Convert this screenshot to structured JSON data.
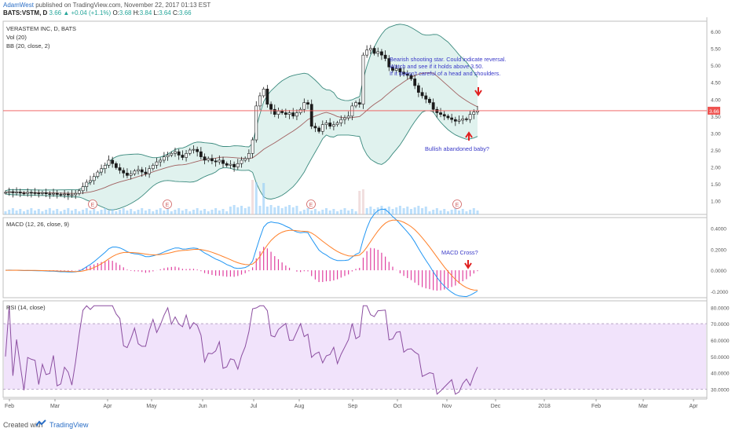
{
  "header": {
    "author": "AdamWest",
    "published": "published on TradingView.com, November 22, 2017 01:13 EST",
    "symbol": "BATS:VSTM, D",
    "last": "3.66",
    "change": "+0.04 (+1.1%)",
    "o_label": "O:",
    "o_value": "3.68",
    "h_label": "H:",
    "h_value": "3.84",
    "l_label": "L:",
    "l_value": "3.64",
    "c_label": "C:",
    "c_value": "3.66"
  },
  "footer": {
    "created": "Created with",
    "brand": "TradingView"
  },
  "colors": {
    "up": "#26a69a",
    "down": "#ef5350",
    "candle_body": "#1b1b1b",
    "bb_fill": "#e0f2ee",
    "bb_line": "#3b8a7e",
    "bb_mid": "#a06060",
    "vol": "#90caf9",
    "macd": "#2196f3",
    "signal": "#ff7f27",
    "hist": "#e040a0",
    "rsi": "#8b4ea0",
    "rsi_band": "#f1e3fb",
    "annotation": "#3a3ac8",
    "arrow": "#e02020",
    "price_line": "#ef5350"
  },
  "chart_data": [
    {
      "type": "candlestick",
      "title": "VERASTEM INC, D, BATS",
      "indicators": [
        "Vol (20)",
        "BB (20, close, 2)"
      ],
      "ylim": [
        0.6,
        6.3
      ],
      "yticks": [
        "6.00",
        "5.50",
        "5.00",
        "4.50",
        "4.00",
        "3.50",
        "3.00",
        "2.50",
        "2.00",
        "1.50",
        "1.00"
      ],
      "last_price_label": "3.66",
      "months": [
        "Feb",
        "Mar",
        "Apr",
        "May",
        "Jun",
        "Jul",
        "Aug",
        "Sep",
        "Oct",
        "Nov",
        "Dec",
        "2018",
        "Feb",
        "Mar",
        "Apr"
      ],
      "close_series": [
        1.25,
        1.27,
        1.24,
        1.26,
        1.23,
        1.22,
        1.25,
        1.24,
        1.23,
        1.22,
        1.24,
        1.21,
        1.2,
        1.22,
        1.19,
        1.18,
        1.2,
        1.17,
        1.18,
        1.22,
        1.3,
        1.42,
        1.55,
        1.6,
        1.72,
        1.85,
        1.95,
        2.05,
        2.2,
        2.1,
        1.98,
        1.9,
        1.82,
        1.75,
        1.8,
        1.88,
        1.92,
        1.85,
        1.8,
        1.95,
        2.05,
        2.15,
        2.2,
        2.3,
        2.35,
        2.4,
        2.45,
        2.35,
        2.28,
        2.4,
        2.5,
        2.52,
        2.45,
        2.3,
        2.2,
        2.25,
        2.18,
        2.15,
        2.2,
        2.1,
        2.05,
        2.08,
        2.0,
        2.1,
        2.2,
        2.25,
        2.4,
        2.8,
        3.8,
        4.1,
        4.3,
        3.85,
        3.7,
        3.55,
        3.65,
        3.6,
        3.55,
        3.6,
        3.5,
        3.6,
        3.7,
        3.9,
        3.85,
        3.2,
        3.15,
        3.05,
        3.25,
        3.3,
        3.2,
        3.25,
        3.3,
        3.4,
        3.45,
        3.5,
        3.8,
        3.9,
        3.85,
        5.3,
        5.45,
        5.5,
        5.35,
        5.4,
        5.3,
        5.2,
        4.95,
        4.85,
        4.9,
        4.8,
        4.75,
        4.7,
        4.6,
        4.4,
        4.2,
        4.1,
        4.0,
        3.9,
        3.7,
        3.6,
        3.55,
        3.5,
        3.45,
        3.4,
        3.35,
        3.38,
        3.42,
        3.4,
        3.55,
        3.62,
        3.66
      ],
      "annotations": [
        "Bearish shooting star. Could indicate reversal.",
        "Watch and see if it holds above 3.50.",
        "If it doesn't careful of a head and shoulders.",
        "Bullish abandoned baby?"
      ],
      "earnings_marker": "E"
    },
    {
      "type": "line",
      "title": "MACD (12, 26, close, 9)",
      "ylim": [
        -0.26,
        0.5
      ],
      "yticks": [
        "0.4000",
        "0.2000",
        "0.0000",
        "-0.2000"
      ],
      "series_names": [
        "MACD",
        "Signal",
        "Histogram"
      ],
      "annotation": "MACD Cross?"
    },
    {
      "type": "line",
      "title": "RSI (14, close)",
      "ylim": [
        25,
        84
      ],
      "band": [
        30,
        70
      ],
      "yticks": [
        "80.0000",
        "70.0000",
        "60.0000",
        "50.0000",
        "40.0000",
        "30.0000"
      ]
    }
  ]
}
